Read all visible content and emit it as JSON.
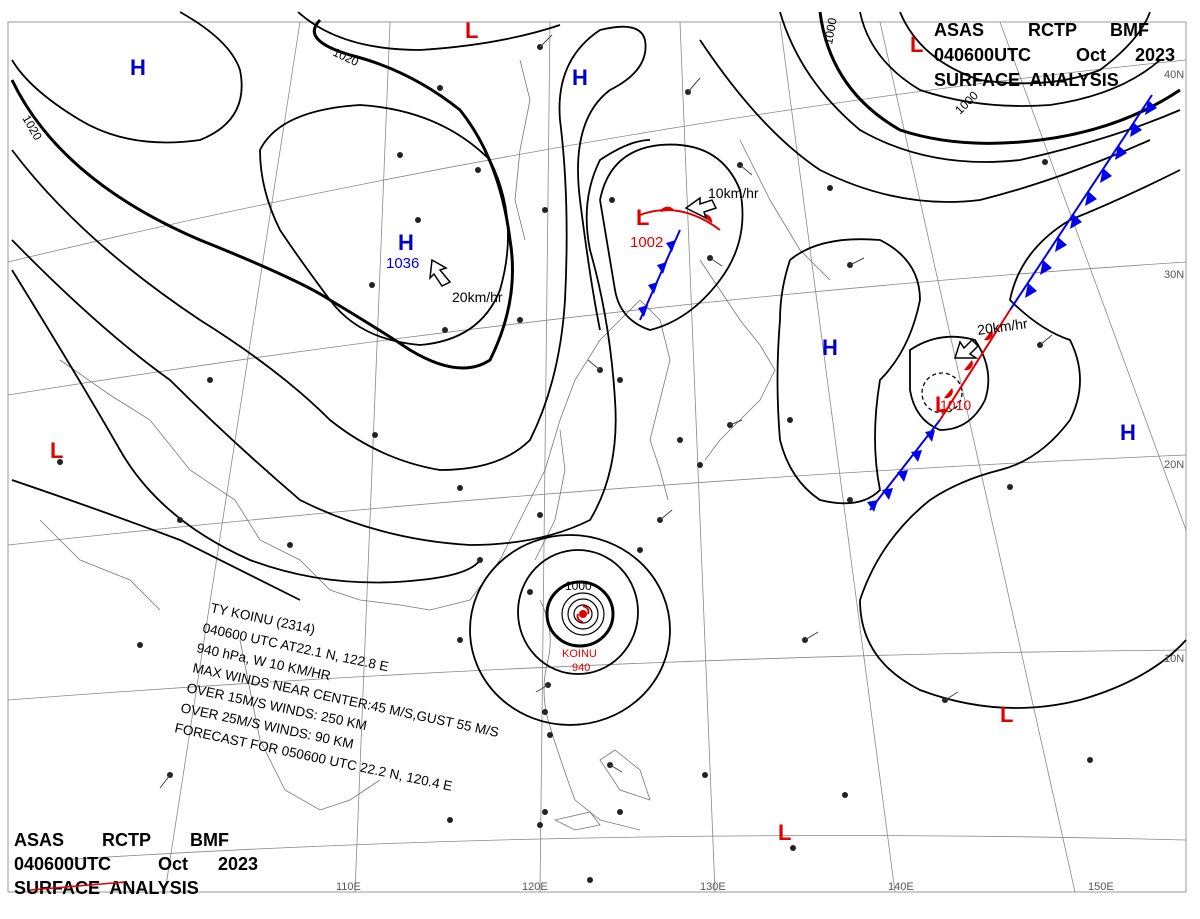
{
  "header_top": {
    "line1": [
      "ASAS",
      "RCTP",
      "BMF"
    ],
    "line2": [
      "040600UTC",
      "Oct",
      "2023"
    ],
    "line3": "SURFACE  ANALYSIS"
  },
  "header_bottom": {
    "line1": [
      "ASAS",
      "RCTP",
      "BMF"
    ],
    "line2": [
      "040600UTC",
      "Oct",
      "2023"
    ],
    "line3": "SURFACE  ANALYSIS"
  },
  "longitudes": [
    "110E",
    "120E",
    "130E",
    "140E",
    "150E"
  ],
  "latitudes": [
    "40N",
    "30N",
    "20N",
    "10N"
  ],
  "isobar_labels": [
    "1020",
    "1020",
    "1000",
    "1000",
    "1000"
  ],
  "pressure_systems": {
    "high_center_value": "1036",
    "low_center_value": "1002",
    "typhoon_name": "KOINU",
    "typhoon_pressure": "940",
    "td_pressure": "1010"
  },
  "motion_labels": [
    "20km/hr",
    "10km/hr",
    "20km/hr"
  ],
  "typhoon_info": [
    "TY  KOINU  (2314)",
    "040600 UTC  AT22.1 N, 122.8 E",
    "940 hPa, W  10 KM/HR",
    "MAX WINDS NEAR CENTER:45 M/S,GUST 55 M/S",
    "OVER 15M/S WINDS: 250 KM",
    "OVER 25M/S WINDS: 90 KM",
    "FORECAST FOR 050600 UTC 22.2 N, 120.4 E"
  ],
  "colors": {
    "high": "#0000cc",
    "low": "#e00000",
    "isobar": "#000000",
    "front_blue": "#0000ee",
    "front_red": "#e00000"
  }
}
